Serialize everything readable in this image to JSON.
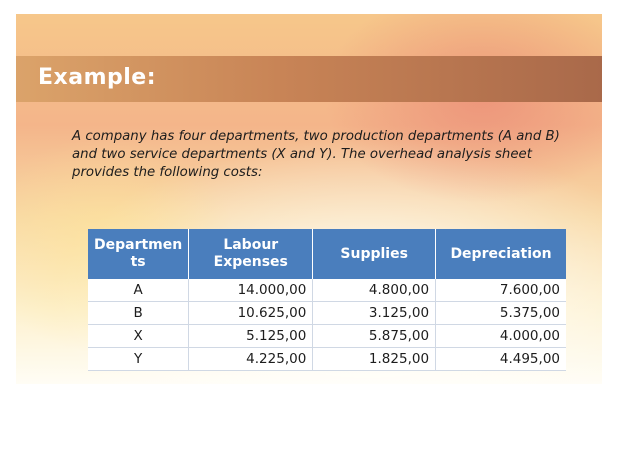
{
  "slide": {
    "title": "Example:",
    "body": "A company has four departments, two production departments (A and B) and two service departments (X and Y). The overhead analysis sheet provides the following costs:"
  },
  "table": {
    "headers": [
      "Departmen ts",
      "Labour Expenses",
      "Supplies",
      "Depreciation"
    ],
    "rows": [
      [
        "A",
        "14.000,00",
        "4.800,00",
        "7.600,00"
      ],
      [
        "B",
        "10.625,00",
        "3.125,00",
        "5.375,00"
      ],
      [
        "X",
        "5.125,00",
        "5.875,00",
        "4.000,00"
      ],
      [
        "Y",
        "4.225,00",
        "1.825,00",
        "4.495,00"
      ]
    ]
  },
  "colors": {
    "header_bg": "#4a7ebd",
    "title_bar": "#c88456"
  }
}
